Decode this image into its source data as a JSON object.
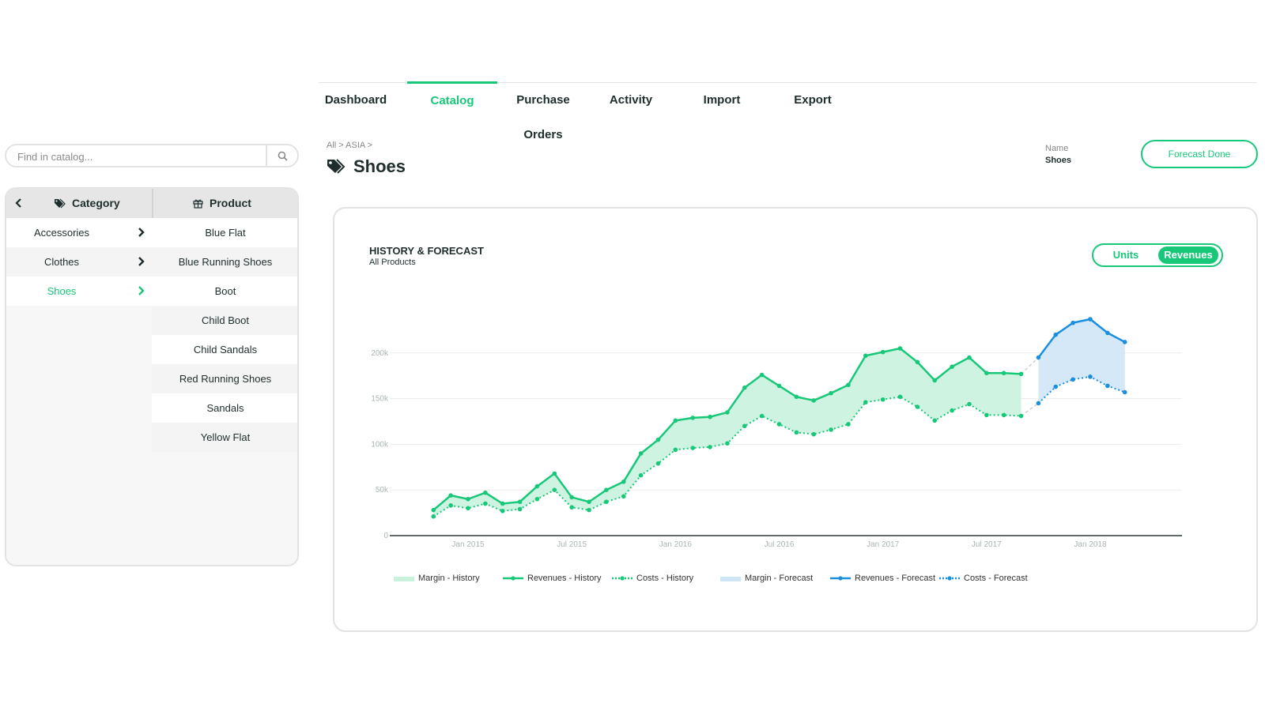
{
  "nav": {
    "tabs": [
      {
        "label": "Dashboard",
        "active": false
      },
      {
        "label": "Catalog",
        "active": true
      },
      {
        "label": "Purchase Orders",
        "active": false
      },
      {
        "label": "Activity",
        "active": false
      },
      {
        "label": "Import",
        "active": false
      },
      {
        "label": "Export",
        "active": false
      }
    ]
  },
  "search": {
    "placeholder": "Find in catalog...",
    "icon": "search-icon"
  },
  "catalog": {
    "category_header": "Category",
    "product_header": "Product",
    "categories": [
      {
        "label": "Accessories",
        "active": false
      },
      {
        "label": "Clothes",
        "active": false
      },
      {
        "label": "Shoes",
        "active": true
      }
    ],
    "products": [
      "Blue Flat",
      "Blue Running Shoes",
      "Boot",
      "Child Boot",
      "Child Sandals",
      "Red Running Shoes",
      "Sandals",
      "Yellow Flat"
    ]
  },
  "header": {
    "breadcrumb": "All > ASIA >",
    "title": "Shoes",
    "name_label": "Name",
    "name_value": "Shoes",
    "forecast_button": "Forecast Done"
  },
  "colors": {
    "accent": "#18c879",
    "forecast": "#1a8fe0",
    "text": "#1f2d2d"
  },
  "toggle": {
    "units_label": "Units",
    "revenues_label": "Revenues",
    "selected": "Revenues"
  },
  "chart_data": {
    "type": "line",
    "title": "HISTORY & FORECAST",
    "subtitle": "All Products",
    "x_ticks": [
      "Jan 2015",
      "Jul 2015",
      "Jan 2016",
      "Jul 2016",
      "Jan 2017",
      "Jul 2017",
      "Jan 2018"
    ],
    "y_ticks": [
      "0",
      "50k",
      "100k",
      "150k",
      "200k"
    ],
    "ylim": [
      0,
      250000
    ],
    "grid": true,
    "legend_position": "bottom",
    "history_months": [
      "2014-11",
      "2014-12",
      "2015-01",
      "2015-02",
      "2015-03",
      "2015-04",
      "2015-05",
      "2015-06",
      "2015-07",
      "2015-08",
      "2015-09",
      "2015-10",
      "2015-11",
      "2015-12",
      "2016-01",
      "2016-02",
      "2016-03",
      "2016-04",
      "2016-05",
      "2016-06",
      "2016-07",
      "2016-08",
      "2016-09",
      "2016-10",
      "2016-11",
      "2016-12",
      "2017-01",
      "2017-02",
      "2017-03",
      "2017-04",
      "2017-05",
      "2017-06",
      "2017-07",
      "2017-08",
      "2017-09"
    ],
    "forecast_months": [
      "2017-10",
      "2017-11",
      "2017-12",
      "2018-01",
      "2018-02",
      "2018-03"
    ],
    "series": [
      {
        "name": "Revenues - History",
        "style": "solid",
        "color": "#18c879",
        "values": [
          28000,
          44000,
          40000,
          47000,
          35000,
          37000,
          54000,
          68000,
          42000,
          37000,
          50000,
          59000,
          90000,
          105000,
          126000,
          129000,
          130000,
          135000,
          162000,
          176000,
          164000,
          152000,
          148000,
          156000,
          165000,
          197000,
          201000,
          205000,
          190000,
          170000,
          185000,
          195000,
          178000,
          178000,
          177000
        ]
      },
      {
        "name": "Costs - History",
        "style": "dotted",
        "color": "#18c879",
        "values": [
          21000,
          33000,
          30000,
          35000,
          27000,
          29000,
          40000,
          50000,
          31000,
          28000,
          37000,
          43000,
          66000,
          79000,
          94000,
          96000,
          97000,
          101000,
          120000,
          131000,
          122000,
          113000,
          111000,
          116000,
          122000,
          146000,
          149000,
          152000,
          141000,
          126000,
          137000,
          144000,
          132000,
          132000,
          131000
        ]
      },
      {
        "name": "Margin - History",
        "style": "area",
        "color": "#c9f2dd"
      },
      {
        "name": "Revenues - Forecast",
        "style": "solid",
        "color": "#1a8fe0",
        "values": [
          195000,
          220000,
          233000,
          237000,
          222000,
          212000
        ]
      },
      {
        "name": "Costs - Forecast",
        "style": "dotted",
        "color": "#1a8fe0",
        "values": [
          145000,
          163000,
          171000,
          174000,
          164000,
          157000
        ]
      },
      {
        "name": "Margin - Forecast",
        "style": "area",
        "color": "#cfe6f7"
      }
    ],
    "legend": [
      "Margin - History",
      "Revenues - History",
      "Costs - History",
      "Margin - Forecast",
      "Revenues - Forecast",
      "Costs - Forecast"
    ]
  }
}
